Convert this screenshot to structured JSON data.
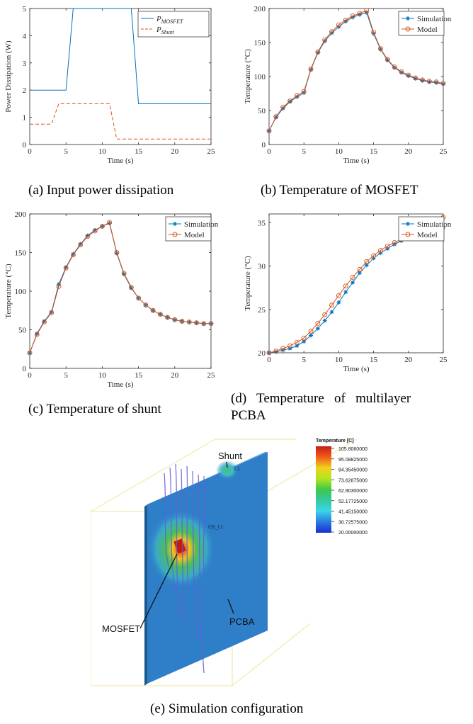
{
  "colors": {
    "mosfet_line": "#0072BD",
    "shunt_line": "#D95319",
    "sim_series": "#0072BD",
    "model_series": "#D95319"
  },
  "captions": {
    "a": "(a) Input power dissipation",
    "b": "(b) Temperature of MOSFET",
    "c": "(c) Temperature of shunt",
    "d1": "(d)   Temperature   of   multilayer",
    "d2": "PCBA",
    "e": "(e) Simulation configuration"
  },
  "simulation": {
    "legend_title": "Temperature [C]",
    "legend_values": [
      "105.8060000",
      "95.08825000",
      "84.35450000",
      "73.62875000",
      "62.90300000",
      "52.17725000",
      "41.45150000",
      "30.72575000",
      "20.00000000"
    ],
    "labels": {
      "shunt": "Shunt",
      "mosfet": "MOSFET",
      "pcba": "PCBA",
      "cb": "CB_L1",
      "l1": "L1"
    }
  },
  "chart_data": [
    {
      "id": "a",
      "type": "line",
      "xlabel": "Time (s)",
      "ylabel": "Power Dissipation (W)",
      "xlim": [
        0,
        25
      ],
      "ylim": [
        0,
        5
      ],
      "xticks": [
        0,
        5,
        10,
        15,
        20,
        25
      ],
      "yticks": [
        0,
        1,
        2,
        3,
        4,
        5
      ],
      "legend": "top-right",
      "series": [
        {
          "name": "P_MOSFET",
          "label_main": "P",
          "label_sub": "MOSFET",
          "style": "solid",
          "x": [
            0,
            5,
            6,
            14,
            15,
            25
          ],
          "y": [
            2,
            2,
            5,
            5,
            1.5,
            1.5
          ]
        },
        {
          "name": "P_Shunt",
          "label_main": "P",
          "label_sub": "Shunt",
          "style": "dashed",
          "x": [
            0,
            3,
            4,
            11,
            12,
            25
          ],
          "y": [
            0.75,
            0.75,
            1.5,
            1.5,
            0.2,
            0.2
          ]
        }
      ]
    },
    {
      "id": "b",
      "type": "line",
      "xlabel": "Time (s)",
      "ylabel": "Temperature (°C)",
      "xlim": [
        0,
        25
      ],
      "ylim": [
        0,
        200
      ],
      "xticks": [
        0,
        5,
        10,
        15,
        20,
        25
      ],
      "yticks": [
        0,
        50,
        100,
        150,
        200
      ],
      "legend": "top-right",
      "series": [
        {
          "name": "Simulation",
          "marker": "star",
          "x": [
            0,
            1,
            2,
            3,
            4,
            5,
            6,
            7,
            8,
            9,
            10,
            11,
            12,
            13,
            14,
            15,
            16,
            17,
            18,
            19,
            20,
            21,
            22,
            23,
            24,
            25
          ],
          "y": [
            20,
            40,
            53,
            63,
            70,
            76,
            110,
            135,
            152,
            164,
            173,
            181,
            187,
            191,
            194,
            163,
            140,
            124,
            113,
            106,
            101,
            97,
            94,
            92,
            91,
            89
          ]
        },
        {
          "name": "Model",
          "marker": "circle",
          "x": [
            0,
            1,
            2,
            3,
            4,
            5,
            6,
            7,
            8,
            9,
            10,
            11,
            12,
            13,
            14,
            15,
            16,
            17,
            18,
            19,
            20,
            21,
            22,
            23,
            24,
            25
          ],
          "y": [
            20,
            41,
            55,
            64,
            72,
            78,
            111,
            136,
            154,
            166,
            176,
            183,
            189,
            193,
            197,
            165,
            141,
            125,
            114,
            107,
            102,
            98,
            95,
            93,
            92,
            90
          ]
        }
      ]
    },
    {
      "id": "c",
      "type": "line",
      "xlabel": "Time (s)",
      "ylabel": "Temperature (°C)",
      "xlim": [
        0,
        25
      ],
      "ylim": [
        0,
        200
      ],
      "xticks": [
        0,
        5,
        10,
        15,
        20,
        25
      ],
      "yticks": [
        0,
        50,
        100,
        150,
        200
      ],
      "legend": "top-right",
      "series": [
        {
          "name": "Simulation",
          "marker": "star",
          "x": [
            0,
            1,
            2,
            3,
            4,
            5,
            6,
            7,
            8,
            9,
            10,
            11,
            12,
            13,
            14,
            15,
            16,
            17,
            18,
            19,
            20,
            21,
            22,
            23,
            24,
            25
          ],
          "y": [
            20,
            45,
            61,
            73,
            109,
            131,
            148,
            161,
            172,
            179,
            184,
            188,
            149,
            122,
            104,
            91,
            82,
            75,
            70,
            66,
            63,
            61,
            60,
            59,
            58,
            58
          ]
        },
        {
          "name": "Model",
          "marker": "circle",
          "x": [
            0,
            1,
            2,
            3,
            4,
            5,
            6,
            7,
            8,
            9,
            10,
            11,
            12,
            13,
            14,
            15,
            16,
            17,
            18,
            19,
            20,
            21,
            22,
            23,
            24,
            25
          ],
          "y": [
            20,
            44,
            60,
            72,
            106,
            130,
            147,
            160,
            171,
            178,
            184,
            189,
            150,
            123,
            105,
            91,
            82,
            75,
            70,
            66,
            63,
            61,
            60,
            59,
            58,
            58
          ]
        }
      ]
    },
    {
      "id": "d",
      "type": "line",
      "xlabel": "Time (s)",
      "ylabel": "Temperature (°C)",
      "xlim": [
        0,
        25
      ],
      "ylim": [
        20,
        36
      ],
      "xticks": [
        0,
        5,
        10,
        15,
        20,
        25
      ],
      "yticks": [
        20,
        25,
        30,
        35
      ],
      "legend": "top-right",
      "series": [
        {
          "name": "Simulation",
          "marker": "star",
          "x": [
            0,
            1,
            2,
            3,
            4,
            5,
            6,
            7,
            8,
            9,
            10,
            11,
            12,
            13,
            14,
            15,
            16,
            17,
            18,
            19,
            20,
            21,
            22,
            23,
            24,
            25
          ],
          "y": [
            20.0,
            20.1,
            20.3,
            20.5,
            20.8,
            21.3,
            22.0,
            22.8,
            23.7,
            24.7,
            25.8,
            27.0,
            28.1,
            29.2,
            30.1,
            30.9,
            31.5,
            32.0,
            32.5,
            32.9,
            33.2,
            33.5,
            33.7,
            33.9,
            34.1,
            34.4
          ]
        },
        {
          "name": "Model",
          "marker": "circle",
          "x": [
            0,
            1,
            2,
            3,
            4,
            5,
            6,
            7,
            8,
            9,
            10,
            11,
            12,
            13,
            14,
            15,
            16,
            17,
            18,
            19,
            20,
            21,
            22,
            23,
            24,
            25
          ],
          "y": [
            20.0,
            20.2,
            20.5,
            20.8,
            21.2,
            21.7,
            22.5,
            23.4,
            24.4,
            25.5,
            26.6,
            27.7,
            28.7,
            29.6,
            30.5,
            31.2,
            31.8,
            32.3,
            32.7,
            33.1,
            33.5,
            33.8,
            34.1,
            34.5,
            35.1,
            35.6
          ]
        }
      ]
    }
  ]
}
